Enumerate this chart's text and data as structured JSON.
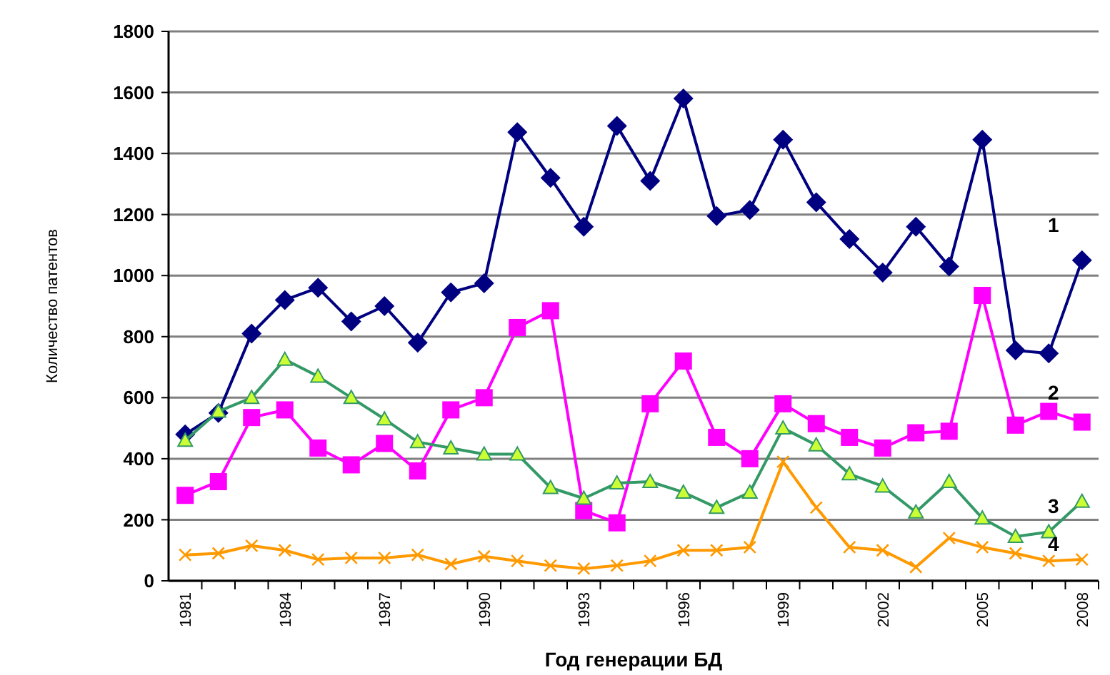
{
  "chart_data": {
    "type": "line",
    "xlabel": "Год генерации БД",
    "ylabel": "Количество патентов",
    "categories": [
      "1981",
      null,
      null,
      "1984",
      null,
      null,
      "1987",
      null,
      null,
      "1990",
      null,
      null,
      "1993",
      null,
      null,
      "1996",
      null,
      null,
      "1999",
      null,
      null,
      "2002",
      null,
      null,
      "2005",
      null,
      null,
      "2008"
    ],
    "ylim": [
      0,
      1800
    ],
    "yticks": [
      0,
      200,
      400,
      600,
      800,
      1000,
      1200,
      1400,
      1600,
      1800
    ],
    "grid": "y",
    "series": [
      {
        "name": "1",
        "color": "#000080",
        "marker": "diamond",
        "values": [
          480,
          550,
          810,
          920,
          960,
          850,
          900,
          780,
          945,
          975,
          1470,
          1320,
          1160,
          1490,
          1310,
          1580,
          1195,
          1215,
          1445,
          1240,
          1120,
          1010,
          1160,
          1030,
          1445,
          755,
          745,
          1050
        ]
      },
      {
        "name": "2",
        "color": "#ff00ff",
        "marker": "square",
        "values": [
          280,
          325,
          535,
          560,
          435,
          380,
          450,
          360,
          560,
          600,
          830,
          885,
          230,
          190,
          580,
          720,
          470,
          400,
          580,
          515,
          470,
          435,
          485,
          490,
          935,
          510,
          555,
          520
        ]
      },
      {
        "name": "3",
        "color": "#339966",
        "marker": "triangle",
        "values": [
          460,
          555,
          600,
          725,
          670,
          600,
          530,
          455,
          435,
          415,
          415,
          305,
          270,
          320,
          325,
          290,
          240,
          290,
          500,
          445,
          350,
          310,
          225,
          325,
          205,
          145,
          160,
          260
        ]
      },
      {
        "name": "4",
        "color": "#ff9900",
        "marker": "cross",
        "values": [
          85,
          90,
          115,
          100,
          70,
          75,
          75,
          85,
          55,
          80,
          65,
          50,
          40,
          50,
          65,
          100,
          100,
          110,
          390,
          240,
          110,
          100,
          45,
          140,
          110,
          90,
          65,
          70
        ]
      }
    ]
  }
}
